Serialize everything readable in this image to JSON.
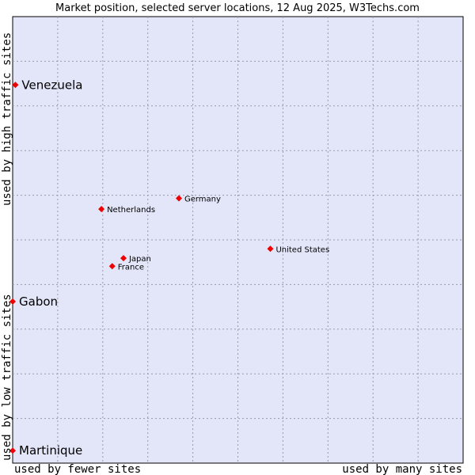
{
  "chart_data": {
    "type": "scatter",
    "title": "Market position, selected server locations, 12 Aug 2025, W3Techs.com",
    "xlabel_left": "used by fewer sites",
    "xlabel_right": "used by many sites",
    "ylabel_bottom": "used by low traffic sites",
    "ylabel_top": "used by high traffic sites",
    "xlim": [
      0,
      100
    ],
    "ylim": [
      0,
      100
    ],
    "grid": true,
    "point_color": "#ee0000",
    "background_color": "#e3e6f8",
    "grid_color": "#9999aa",
    "points": [
      {
        "label": "Venezuela",
        "x": 0.6,
        "y": 84.7,
        "emphasis": true
      },
      {
        "label": "Germany",
        "x": 36.9,
        "y": 59.3,
        "emphasis": false
      },
      {
        "label": "Netherlands",
        "x": 19.7,
        "y": 56.9,
        "emphasis": false
      },
      {
        "label": "United States",
        "x": 57.2,
        "y": 48.0,
        "emphasis": false
      },
      {
        "label": "Japan",
        "x": 24.6,
        "y": 45.9,
        "emphasis": false
      },
      {
        "label": "France",
        "x": 22.1,
        "y": 44.1,
        "emphasis": false
      },
      {
        "label": "Gabon",
        "x": 0.0,
        "y": 36.2,
        "emphasis": true
      },
      {
        "label": "Martinique",
        "x": 0.0,
        "y": 2.8,
        "emphasis": true
      }
    ]
  }
}
